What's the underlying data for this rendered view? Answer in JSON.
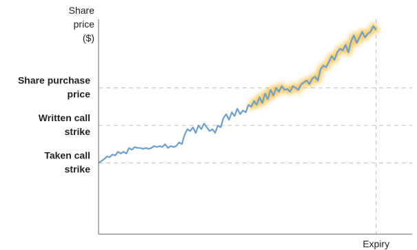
{
  "chart_data": {
    "type": "line",
    "title": "",
    "ylabel_lines": [
      "Share",
      "price",
      "($)"
    ],
    "xlabel": "Expiry",
    "reference_lines": [
      {
        "name_lines": [
          "Share purchase",
          "price"
        ],
        "y": 100
      },
      {
        "name_lines": [
          "Written call",
          "strike"
        ],
        "y": 80
      },
      {
        "name_lines": [
          "Taken call",
          "strike"
        ],
        "y": 60
      }
    ],
    "expiry_x": 100,
    "xlim": [
      0,
      113
    ],
    "ylim": [
      22,
      144
    ],
    "highlight_from_x": 55,
    "colors": {
      "line": "#6a9fd4",
      "highlight": "#f5b82e",
      "axis": "#666666",
      "reference": "#bbbbbb"
    },
    "series": [
      {
        "x": [
          0,
          1,
          2,
          3,
          4,
          5,
          6,
          7,
          8,
          9,
          10,
          11,
          12,
          13,
          14,
          15,
          16,
          17,
          18,
          19,
          20,
          21,
          22,
          23,
          24,
          25,
          26,
          27,
          28,
          29,
          30,
          31,
          32,
          33,
          34,
          35,
          36,
          37,
          38,
          39,
          40,
          41,
          42,
          43,
          44,
          45,
          46,
          47,
          48,
          49,
          50,
          51,
          52,
          53,
          54,
          55,
          56,
          57,
          58,
          59,
          60,
          61,
          62,
          63,
          64,
          65,
          66,
          67,
          68,
          69,
          70,
          71,
          72,
          73,
          74,
          75,
          76,
          77,
          78,
          79,
          80,
          81,
          82,
          83,
          84,
          85,
          86,
          87,
          88,
          89,
          90,
          91,
          92,
          93,
          94,
          95,
          96,
          97,
          98,
          99,
          100
        ],
        "y": [
          60,
          61,
          62,
          63.5,
          63,
          64.5,
          64,
          66,
          65,
          66,
          65,
          68,
          67,
          68.5,
          68,
          68,
          67.5,
          68,
          67.5,
          68,
          69,
          68.5,
          69,
          68.5,
          70,
          68,
          69,
          68.5,
          69,
          71,
          70,
          75,
          78,
          77,
          79,
          76,
          80,
          78,
          81,
          79,
          77,
          78,
          76,
          80,
          79,
          84,
          86,
          83,
          87,
          85,
          89,
          86,
          88,
          87,
          91,
          90,
          93,
          91,
          95,
          92,
          97,
          94,
          99,
          96,
          100,
          98,
          101,
          99,
          99.5,
          98,
          101,
          100,
          99,
          102,
          103,
          104,
          102,
          105,
          106,
          104,
          110,
          112,
          111,
          114,
          117,
          115,
          119,
          121,
          120,
          123,
          119,
          125,
          128,
          124,
          127,
          130,
          127,
          129,
          130,
          133,
          131
        ]
      }
    ]
  }
}
